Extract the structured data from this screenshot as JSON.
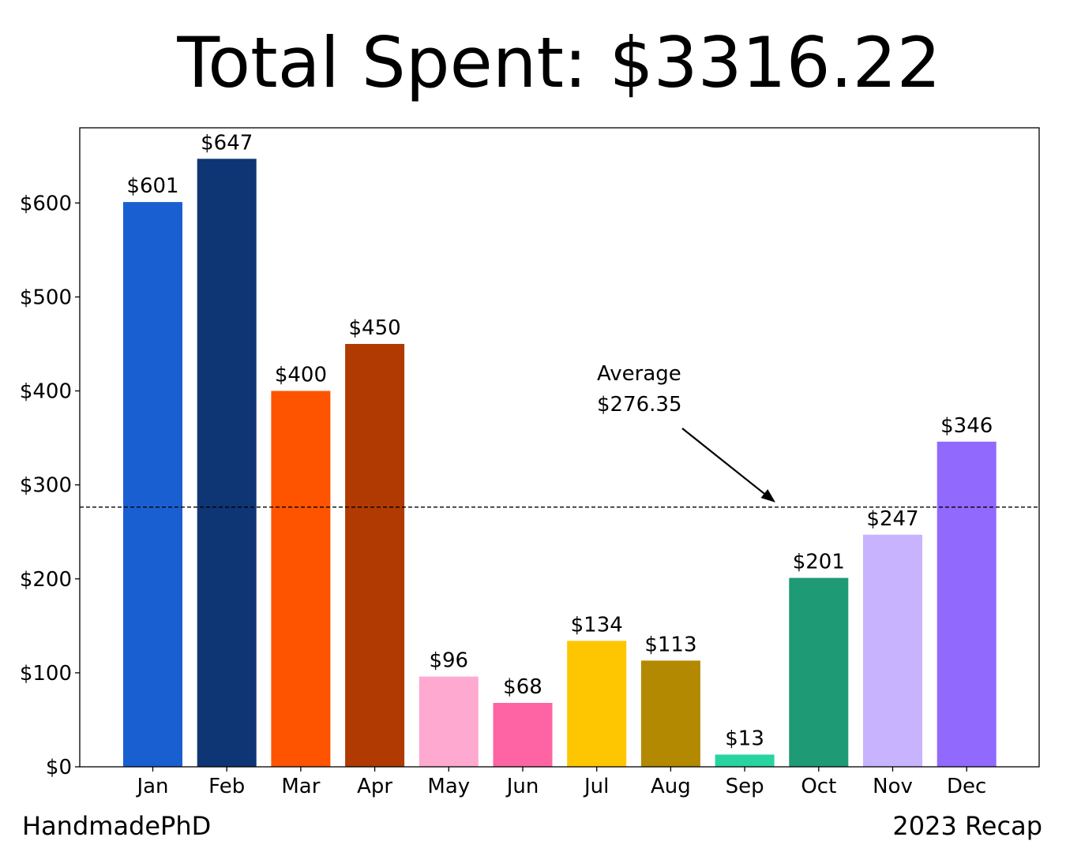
{
  "title": "Total Spent: $3316.22",
  "footer": {
    "left": "HandmadePhD",
    "right": "2023 Recap"
  },
  "chart_data": {
    "type": "bar",
    "categories": [
      "Jan",
      "Feb",
      "Mar",
      "Apr",
      "May",
      "Jun",
      "Jul",
      "Aug",
      "Sep",
      "Oct",
      "Nov",
      "Dec"
    ],
    "values": [
      601,
      647,
      400,
      450,
      96,
      68,
      134,
      113,
      13,
      201,
      247,
      346
    ],
    "value_labels": [
      "$601",
      "$647",
      "$400",
      "$450",
      "$96",
      "$68",
      "$134",
      "$113",
      "$13",
      "$201",
      "$247",
      "$346"
    ],
    "colors": [
      "#1a5fd1",
      "#0e3574",
      "#fe5400",
      "#b13a02",
      "#feaad0",
      "#fe64a4",
      "#fec600",
      "#b28900",
      "#28d3a2",
      "#1e9a75",
      "#c7b3fe",
      "#9169fd"
    ],
    "ylim": [
      0,
      680
    ],
    "yticks": [
      0,
      100,
      200,
      300,
      400,
      500,
      600
    ],
    "ytick_labels": [
      "$0",
      "$100",
      "$200",
      "$300",
      "$400",
      "$500",
      "$600"
    ],
    "xlabel": "",
    "ylabel": "",
    "grid": false,
    "average": {
      "value": 276.35,
      "label_line1": "Average",
      "label_line2": "$276.35",
      "line_style": "dashed"
    }
  }
}
